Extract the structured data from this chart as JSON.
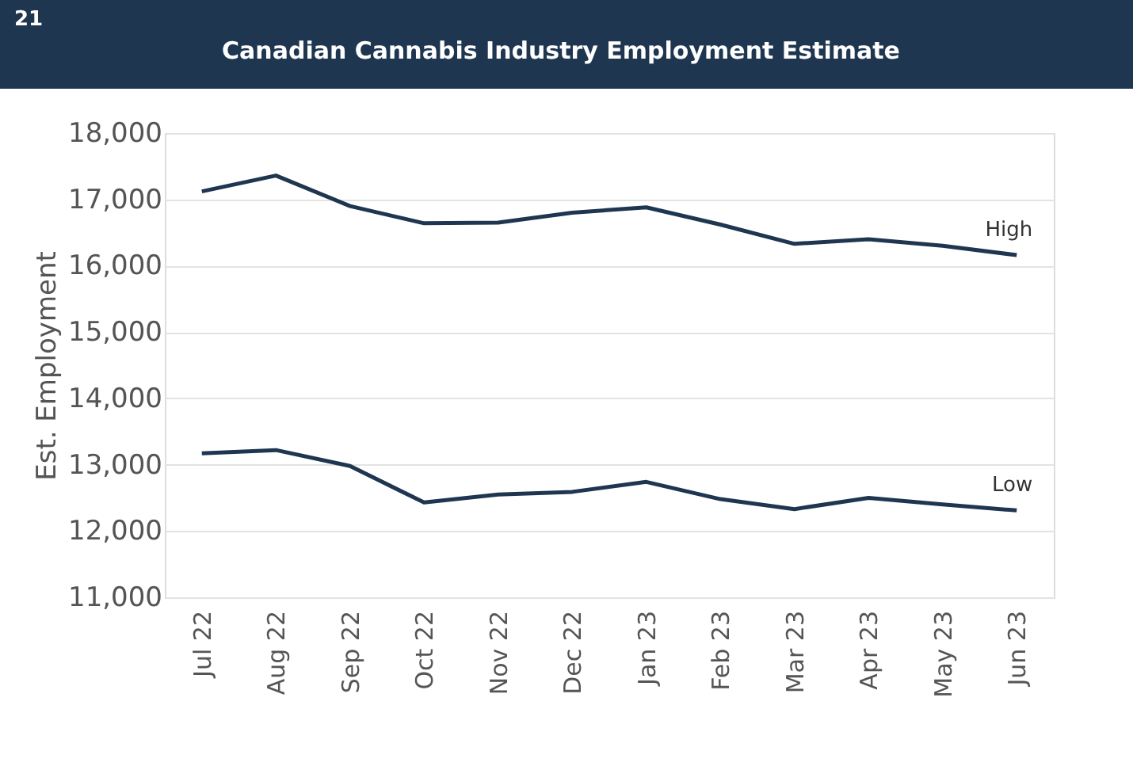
{
  "chart_data": {
    "type": "line",
    "title": "Canadian Cannabis Industry Employment Estimate",
    "ylabel": "Est. Employment",
    "categories": [
      "Jul 22",
      "Aug 22",
      "Sep 22",
      "Oct 22",
      "Nov 22",
      "Dec 22",
      "Jan 23",
      "Feb 23",
      "Mar 23",
      "Apr 23",
      "May 23",
      "Jun 23"
    ],
    "series": [
      {
        "name": "High",
        "color": "#1f3650",
        "values": [
          17120,
          17360,
          16900,
          16640,
          16650,
          16800,
          16880,
          16620,
          16330,
          16400,
          16300,
          16160
        ]
      },
      {
        "name": "Low",
        "color": "#1f3650",
        "values": [
          13170,
          13220,
          12980,
          12430,
          12550,
          12590,
          12740,
          12480,
          12330,
          12500,
          12400,
          12310
        ]
      }
    ],
    "ylim": [
      11000,
      18000
    ],
    "yticks": [
      {
        "value": 11000,
        "label": "11,000"
      },
      {
        "value": 12000,
        "label": "12,000"
      },
      {
        "value": 13000,
        "label": "13,000"
      },
      {
        "value": 14000,
        "label": "14,000"
      },
      {
        "value": 15000,
        "label": "15,000"
      },
      {
        "value": 16000,
        "label": "16,000"
      },
      {
        "value": 17000,
        "label": "17,000"
      },
      {
        "value": 18000,
        "label": "18,000"
      }
    ],
    "grid": "y",
    "legend": false,
    "marker": "none",
    "line_style": "solid",
    "annotations": [
      "21"
    ]
  }
}
